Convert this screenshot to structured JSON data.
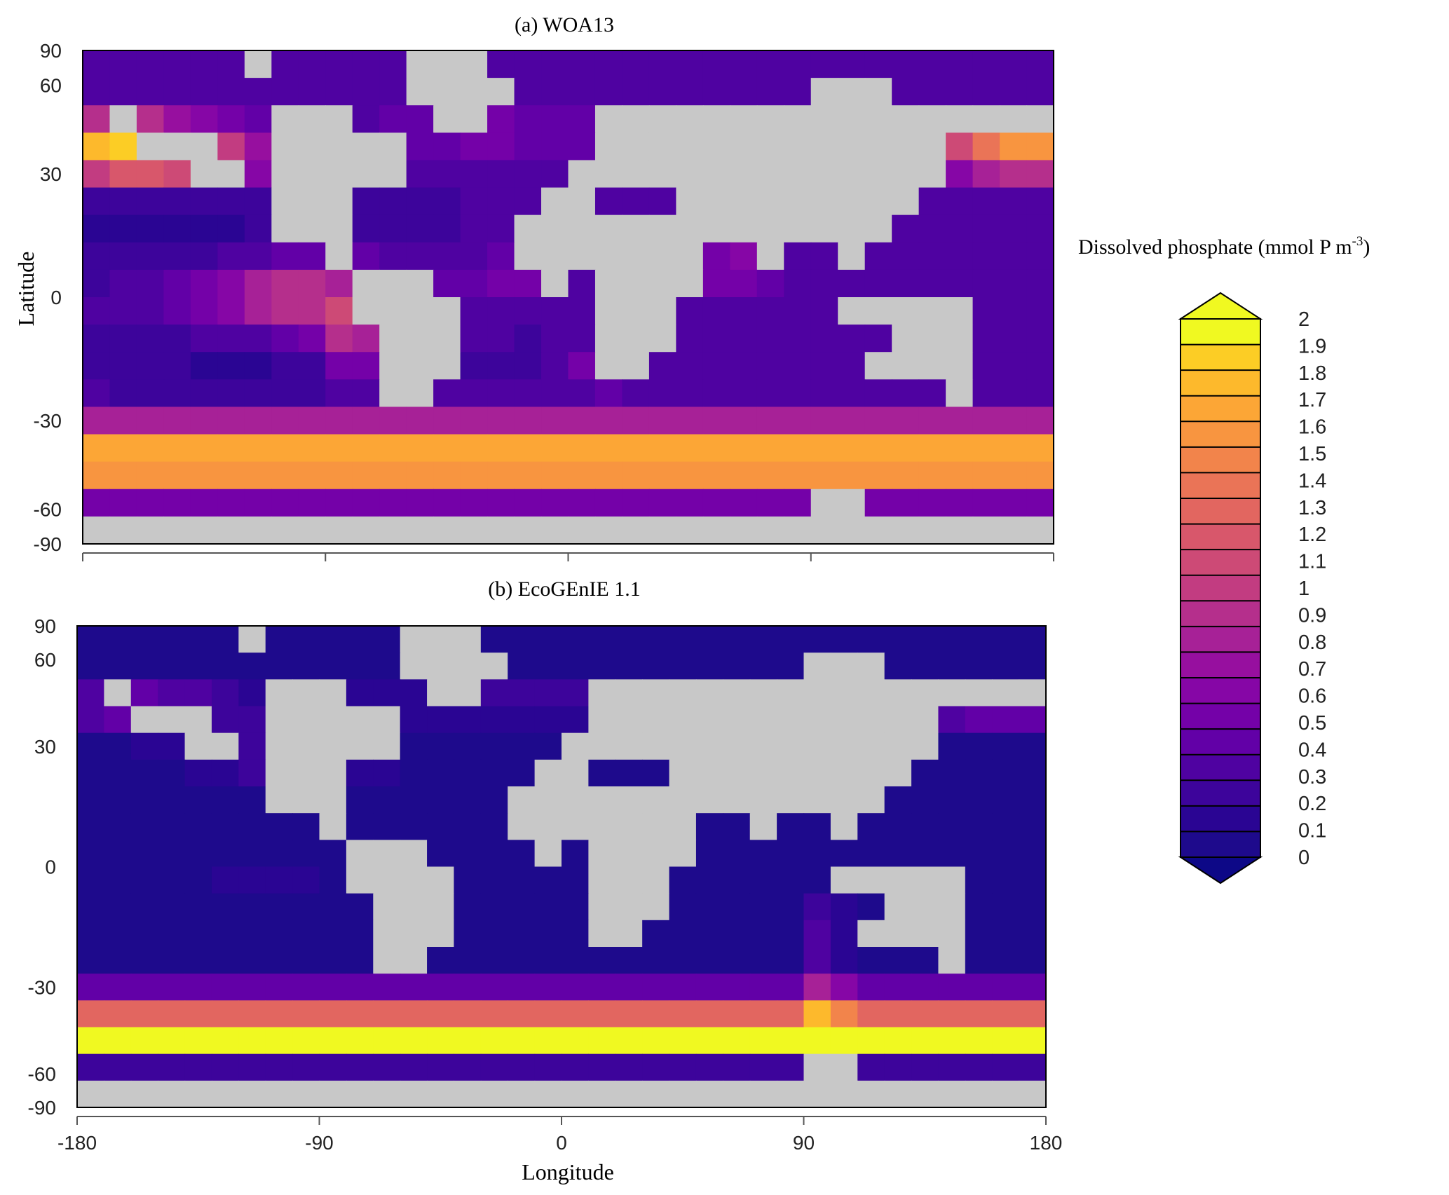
{
  "figure": {
    "panels": [
      {
        "id": "a",
        "title": "(a) WOA13"
      },
      {
        "id": "b",
        "title": "(b) EcoGEnIE 1.1"
      }
    ],
    "ylabel": "Latitude",
    "xlabel": "Longitude",
    "colorbar_label_main": "Dissolved phosphate (mmol P m",
    "colorbar_label_sup": "-3",
    "colorbar_label_close": ")"
  },
  "chart_data": [
    {
      "type": "heatmap",
      "title": "(a) WOA13",
      "ylabel": "Latitude",
      "xlabel": "",
      "xlim": [
        -180,
        180
      ],
      "ylim": [
        -90,
        90
      ],
      "yticks": [
        "90",
        "60",
        "30",
        "0",
        "-30",
        "-60",
        "-90"
      ],
      "xticks_shown": false,
      "value_range": [
        0,
        2
      ],
      "description_of_values": "Surface phosphate high (1.5-2.0) in Southern Ocean (-50 to -70) and North Pacific (45-65N); elevated (1.0-1.3) in eastern equatorial Pacific and Benguela/Arabian upwelling; low (0.1-0.4) in subtropical gyres."
    },
    {
      "type": "heatmap",
      "title": "(b) EcoGEnIE 1.1",
      "ylabel": "Latitude",
      "xlabel": "Longitude",
      "xlim": [
        -180,
        180
      ],
      "ylim": [
        -90,
        90
      ],
      "yticks": [
        "90",
        "60",
        "30",
        "0",
        "-30",
        "-60",
        "-90"
      ],
      "xticks": [
        "-180",
        "-90",
        "0",
        "90",
        "180"
      ],
      "value_range": [
        0,
        2
      ],
      "description_of_values": "Mostly near-zero (0-0.1) phosphate; high (1.5-2.0) only in a band around -55 to -70 latitude; weak elevation (0.4-0.8) in North Pacific/Atlantic subpolar and a plume south of India (~95E)."
    }
  ],
  "colorbar": {
    "ticks": [
      "2",
      "1.9",
      "1.8",
      "1.7",
      "1.6",
      "1.5",
      "1.4",
      "1.3",
      "1.2",
      "1.1",
      "1",
      "0.9",
      "0.8",
      "0.7",
      "0.6",
      "0.5",
      "0.4",
      "0.3",
      "0.2",
      "0.1",
      "0"
    ],
    "colors": [
      "#1e0a8c",
      "#2a0593",
      "#3d049b",
      "#4f02a1",
      "#6200a7",
      "#7401a8",
      "#8606a6",
      "#970f9f",
      "#a72197",
      "#b52f8c",
      "#c23c81",
      "#cd4a76",
      "#d8576b",
      "#e26660",
      "#ea7457",
      "#f2844b",
      "#f89540",
      "#fca636",
      "#fdb92c",
      "#fccd25",
      "#f0f921"
    ],
    "under_color": "#0d0887",
    "over_color": "#f0f921",
    "land_color": "#c8c8c8"
  }
}
